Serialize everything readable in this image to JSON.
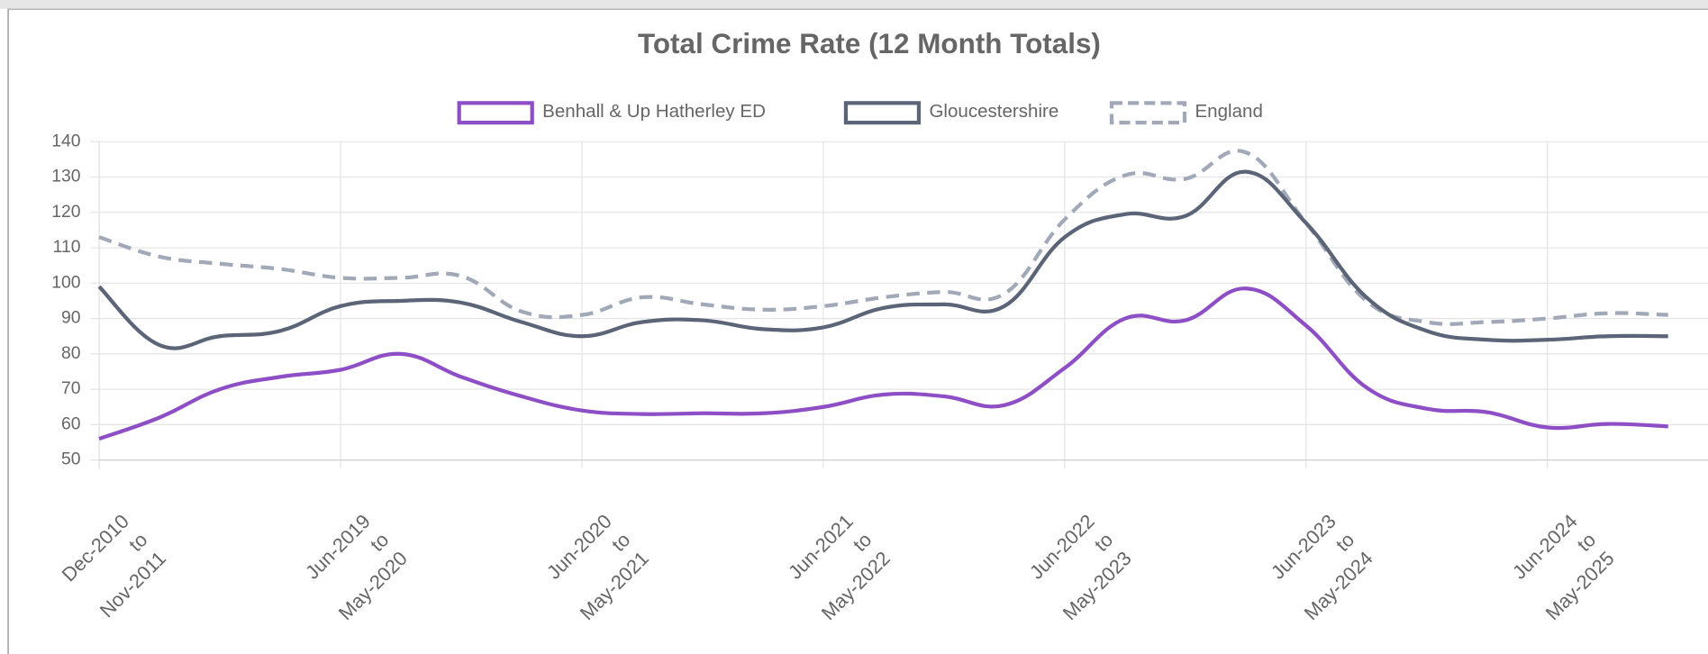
{
  "chart_data": {
    "type": "line",
    "title": "Total Crime Rate (12 Month Totals)",
    "categories": [
      [
        "Dec-2010",
        "to",
        "Nov-2011"
      ],
      null,
      null,
      null,
      [
        "Jun-2019",
        "to",
        "May-2020"
      ],
      null,
      null,
      null,
      [
        "Jun-2020",
        "to",
        "May-2021"
      ],
      null,
      null,
      null,
      [
        "Jun-2021",
        "to",
        "May-2022"
      ],
      null,
      null,
      null,
      [
        "Jun-2022",
        "to",
        "May-2023"
      ],
      null,
      null,
      null,
      [
        "Jun-2023",
        "to",
        "May-2024"
      ],
      null,
      null,
      null,
      [
        "Jun-2024",
        "to",
        "May-2025"
      ],
      null,
      null
    ],
    "series": [
      {
        "name": "Benhall & Up Hatherley ED",
        "color": "#8e4fc6",
        "dashed": false,
        "values": [
          56,
          62,
          70,
          73.5,
          75.5,
          80,
          73.5,
          68,
          64,
          63,
          63.2,
          63.2,
          65,
          68.5,
          68,
          65.5,
          76,
          90,
          89.5,
          98.5,
          88,
          70.5,
          64.5,
          63.5,
          59.2,
          60.2,
          59.5
        ]
      },
      {
        "name": "Gloucestershire",
        "color": "#5b6577",
        "dashed": false,
        "values": [
          99,
          82.5,
          85,
          86.5,
          93.5,
          95,
          94.5,
          89,
          85,
          89,
          89.5,
          87,
          87.5,
          93,
          94,
          93.5,
          113,
          119.5,
          119,
          131.5,
          117,
          96,
          86.5,
          84,
          84,
          85,
          85
        ]
      },
      {
        "name": "England",
        "color": "#a1a8b8",
        "dashed": true,
        "values": [
          113,
          107.5,
          105.5,
          104,
          101.5,
          101.5,
          102,
          92,
          91,
          96,
          94,
          92.5,
          93.5,
          96,
          97.5,
          97,
          118,
          130.5,
          129.5,
          137,
          117,
          95,
          89,
          89,
          90,
          91.5,
          91
        ]
      }
    ],
    "ylim": [
      50,
      140
    ],
    "yticks": [
      50,
      60,
      70,
      80,
      90,
      100,
      110,
      120,
      130,
      140
    ],
    "grid": true,
    "legend": "top"
  }
}
